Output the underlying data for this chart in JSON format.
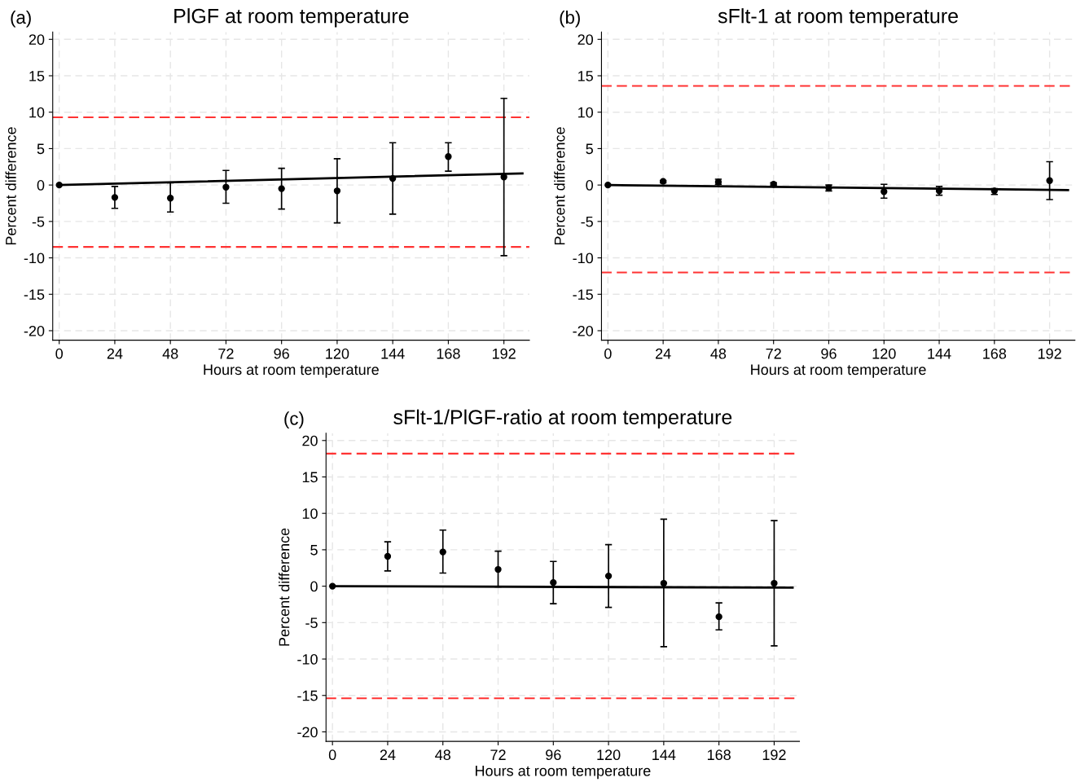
{
  "chart_data": [
    {
      "type": "scatter",
      "title": "PlGF at room temperature",
      "xlabel": "Hours at room temperature",
      "ylabel": "Percent difference",
      "annotations": [
        "(a)"
      ],
      "xlim": [
        -2.8,
        203
      ],
      "ylim": [
        -21.3,
        21
      ],
      "xticks": [
        0,
        24,
        48,
        72,
        96,
        120,
        144,
        168,
        192
      ],
      "yticks": [
        -20,
        -15,
        -10,
        -5,
        0,
        5,
        10,
        15,
        20
      ],
      "grid": true,
      "legend": false,
      "series": [
        {
          "marker": "circle",
          "color": "#000000",
          "x": [
            0,
            24,
            48,
            72,
            96,
            120,
            144,
            168,
            192
          ],
          "values": [
            0,
            -1.7,
            -1.8,
            -0.3,
            -0.5,
            -0.8,
            0.9,
            3.9,
            1.1
          ],
          "errors": [
            null,
            [
              -3.2,
              -0.2
            ],
            [
              -3.7,
              0.3
            ],
            [
              -2.5,
              2.0
            ],
            [
              -3.3,
              2.3
            ],
            [
              -5.2,
              3.6
            ],
            [
              -4.0,
              5.8
            ],
            [
              1.9,
              5.8
            ],
            [
              -9.7,
              11.9
            ]
          ]
        },
        {
          "type": "line",
          "color": "#000000",
          "x": [
            0,
            200
          ],
          "values": [
            0,
            1.6
          ],
          "marker": "none"
        }
      ],
      "ref_lines": [
        {
          "axis": "y",
          "value": 9.3,
          "color": "#ff3333",
          "line_style": "dashed"
        },
        {
          "axis": "y",
          "value": -8.5,
          "color": "#ff3333",
          "line_style": "dashed"
        }
      ]
    },
    {
      "type": "scatter",
      "title": "sFlt-1 at room temperature",
      "xlabel": "Hours at room temperature",
      "ylabel": "Percent difference",
      "annotations": [
        "(b)"
      ],
      "xlim": [
        -2.8,
        203
      ],
      "ylim": [
        -21.3,
        21
      ],
      "xticks": [
        0,
        24,
        48,
        72,
        96,
        120,
        144,
        168,
        192
      ],
      "yticks": [
        -20,
        -15,
        -10,
        -5,
        0,
        5,
        10,
        15,
        20
      ],
      "grid": true,
      "legend": false,
      "series": [
        {
          "marker": "circle",
          "color": "#000000",
          "x": [
            0,
            24,
            48,
            72,
            96,
            120,
            144,
            168,
            192
          ],
          "values": [
            0,
            0.5,
            0.4,
            0.1,
            -0.4,
            -0.9,
            -0.8,
            -0.8,
            0.6
          ],
          "errors": [
            null,
            [
              0.3,
              0.6
            ],
            [
              0.1,
              0.8
            ],
            [
              -0.1,
              0.3
            ],
            [
              -0.8,
              0.0
            ],
            [
              -1.8,
              0.1
            ],
            [
              -1.4,
              -0.2
            ],
            [
              -1.3,
              -0.5
            ],
            [
              -2.0,
              3.2
            ]
          ]
        },
        {
          "type": "line",
          "color": "#000000",
          "x": [
            0,
            200
          ],
          "values": [
            0,
            -0.7
          ],
          "marker": "none"
        }
      ],
      "ref_lines": [
        {
          "axis": "y",
          "value": 13.6,
          "color": "#ff3333",
          "line_style": "dashed"
        },
        {
          "axis": "y",
          "value": -12.0,
          "color": "#ff3333",
          "line_style": "dashed"
        }
      ]
    },
    {
      "type": "scatter",
      "title": "sFlt-1/PlGF-ratio at room temperature",
      "xlabel": "Hours at room temperature",
      "ylabel": "Percent difference",
      "annotations": [
        "(c)"
      ],
      "xlim": [
        -2.8,
        203
      ],
      "ylim": [
        -21.3,
        21
      ],
      "xticks": [
        0,
        24,
        48,
        72,
        96,
        120,
        144,
        168,
        192
      ],
      "yticks": [
        -20,
        -15,
        -10,
        -5,
        0,
        5,
        10,
        15,
        20
      ],
      "grid": true,
      "legend": false,
      "series": [
        {
          "marker": "circle",
          "color": "#000000",
          "x": [
            0,
            24,
            48,
            72,
            96,
            120,
            144,
            168,
            192
          ],
          "values": [
            0,
            4.1,
            4.7,
            2.3,
            0.5,
            1.4,
            0.4,
            -4.2,
            0.4
          ],
          "errors": [
            null,
            [
              2.1,
              6.1
            ],
            [
              1.8,
              7.7
            ],
            [
              -0.1,
              4.8
            ],
            [
              -2.4,
              3.4
            ],
            [
              -2.9,
              5.7
            ],
            [
              -8.3,
              9.2
            ],
            [
              -6.0,
              -2.3
            ],
            [
              -8.2,
              9.0
            ]
          ]
        },
        {
          "type": "line",
          "color": "#000000",
          "x": [
            0,
            200
          ],
          "values": [
            0,
            -0.2
          ],
          "marker": "none"
        }
      ],
      "ref_lines": [
        {
          "axis": "y",
          "value": 18.2,
          "color": "#ff3333",
          "line_style": "dashed"
        },
        {
          "axis": "y",
          "value": -15.4,
          "color": "#ff3333",
          "line_style": "dashed"
        }
      ]
    }
  ]
}
